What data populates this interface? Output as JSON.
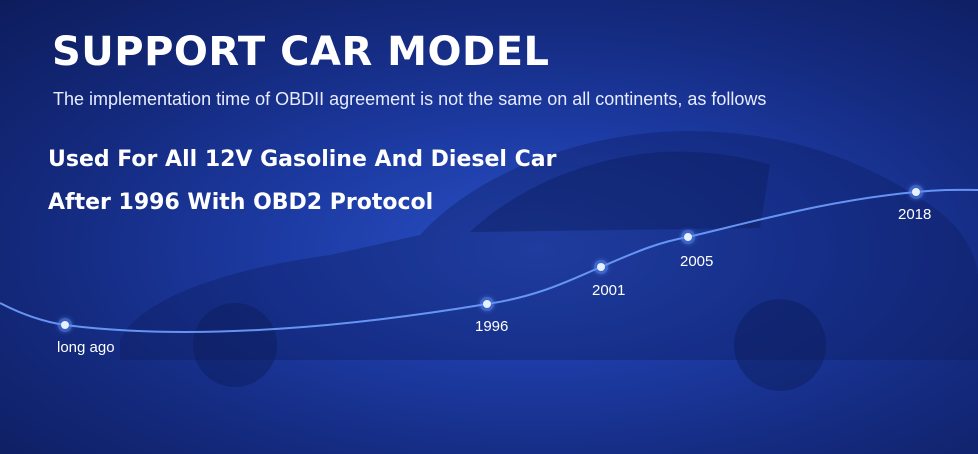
{
  "banner": {
    "title": "SUPPORT CAR MODEL",
    "subtitle": "The implementation time of OBDII agreement is not the same on all continents, as follows",
    "headline_line1": "Used For All 12V Gasoline And Diesel Car",
    "headline_line2": "After 1996 With OBD2 Protocol"
  },
  "timeline": {
    "milestones": [
      {
        "label": "long ago"
      },
      {
        "label": "1996"
      },
      {
        "label": "2001"
      },
      {
        "label": "2005"
      },
      {
        "label": "2018"
      }
    ]
  },
  "colors": {
    "background_center": "#2a4fc4",
    "background_edge": "#0d1c5c",
    "curve": "#6fa0ff",
    "dot": "#e6f0ff",
    "dot_ring": "#5b8cf5"
  },
  "icons": {
    "background": "car-silhouette-icon"
  }
}
